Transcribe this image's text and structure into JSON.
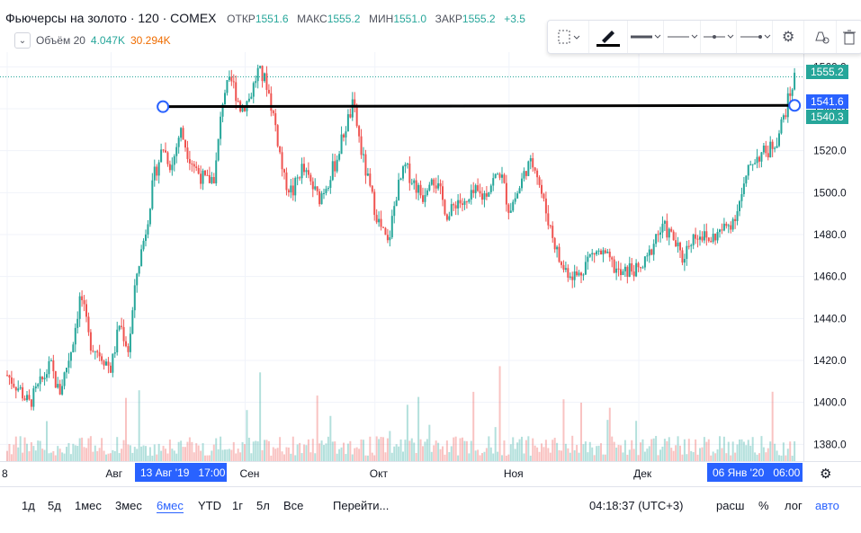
{
  "header": {
    "title": "Фьючерсы на золото · 120 · COMEX",
    "open_label": "ОТКР",
    "open_value": "1551.6",
    "high_label": "МАКС",
    "high_value": "1555.2",
    "low_label": "МИН",
    "low_value": "1551.0",
    "close_label": "ЗАКР",
    "close_value": "1555.2",
    "change_value": "+3.5"
  },
  "volume": {
    "label": "Объём 20",
    "value1": "4.047K",
    "value2": "30.294K",
    "toggle_icon": "chevron-down-icon"
  },
  "toolbar": {
    "icons": [
      "selection-icon",
      "pencil-icon",
      "line-width-icon",
      "line-style-icon",
      "line-end-icon",
      "line-arrow-icon",
      "gear-icon",
      "alert-icon",
      "trash-icon"
    ]
  },
  "colors": {
    "up": "#26a69a",
    "down": "#ef5350",
    "accent": "#2962ff",
    "price_tag": "#26a69a",
    "axis_highlight": "#2962ff",
    "trend": "#000000"
  },
  "price_labels": {
    "last": "1555.2",
    "trend_end": "1541.6",
    "prev": "1540.3"
  },
  "time_highlights": {
    "start_date": "13 Авг '19",
    "start_time": "17:00",
    "end_date": "06 Янв '20",
    "end_time": "06:00"
  },
  "bottom_bar": {
    "timeframes": [
      "1д",
      "5д",
      "1мес",
      "3мес",
      "6мес",
      "YTD",
      "1г",
      "5л",
      "Все"
    ],
    "active_timeframe": "6мес",
    "goto": "Перейти...",
    "clock": "04:18:37 (UTC+3)",
    "scale_options": [
      "расш",
      "%",
      "лог",
      "авто"
    ]
  },
  "chart_data": {
    "type": "candlestick",
    "y_ticks": [
      "1380.0",
      "1400.0",
      "1420.0",
      "1440.0",
      "1460.0",
      "1480.0",
      "1500.0",
      "1520.0",
      "1540.0",
      "1560.0"
    ],
    "ylim": [
      1372,
      1567
    ],
    "x_ticks": [
      "8",
      "Авг",
      "Сен",
      "Окт",
      "Ноя",
      "Дек"
    ],
    "x_range": [
      "2019-07-08",
      "2020-01-07"
    ],
    "grid": true,
    "trend_line": {
      "start": [
        "2019-08-13",
        1541.0
      ],
      "end": [
        "2020-01-06",
        1541.6
      ]
    },
    "series": [
      {
        "values": [
          [
            "2019-07-08",
            1413
          ],
          [
            "2019-07-11",
            1406
          ],
          [
            "2019-07-13",
            1399
          ],
          [
            "2019-07-16",
            1410
          ],
          [
            "2019-07-18",
            1418
          ],
          [
            "2019-07-20",
            1404
          ],
          [
            "2019-07-23",
            1427
          ],
          [
            "2019-07-25",
            1452
          ],
          [
            "2019-07-27",
            1429
          ],
          [
            "2019-07-30",
            1422
          ],
          [
            "2019-08-01",
            1416
          ],
          [
            "2019-08-03",
            1438
          ],
          [
            "2019-08-05",
            1425
          ],
          [
            "2019-08-07",
            1462
          ],
          [
            "2019-08-09",
            1482
          ],
          [
            "2019-08-11",
            1508
          ],
          [
            "2019-08-13",
            1522
          ],
          [
            "2019-08-15",
            1512
          ],
          [
            "2019-08-17",
            1530
          ],
          [
            "2019-08-19",
            1518
          ],
          [
            "2019-08-21",
            1510
          ],
          [
            "2019-08-23",
            1505
          ],
          [
            "2019-08-25",
            1508
          ],
          [
            "2019-08-27",
            1548
          ],
          [
            "2019-08-29",
            1553
          ],
          [
            "2019-08-31",
            1540
          ],
          [
            "2019-09-02",
            1545
          ],
          [
            "2019-09-04",
            1558
          ],
          [
            "2019-09-06",
            1552
          ],
          [
            "2019-09-08",
            1532
          ],
          [
            "2019-09-10",
            1506
          ],
          [
            "2019-09-12",
            1500
          ],
          [
            "2019-09-14",
            1512
          ],
          [
            "2019-09-16",
            1505
          ],
          [
            "2019-09-18",
            1497
          ],
          [
            "2019-09-20",
            1505
          ],
          [
            "2019-09-22",
            1515
          ],
          [
            "2019-09-24",
            1530
          ],
          [
            "2019-09-26",
            1542
          ],
          [
            "2019-09-28",
            1518
          ],
          [
            "2019-09-30",
            1500
          ],
          [
            "2019-10-02",
            1485
          ],
          [
            "2019-10-04",
            1475
          ],
          [
            "2019-10-06",
            1500
          ],
          [
            "2019-10-08",
            1512
          ],
          [
            "2019-10-10",
            1505
          ],
          [
            "2019-10-12",
            1498
          ],
          [
            "2019-10-14",
            1510
          ],
          [
            "2019-10-16",
            1500
          ],
          [
            "2019-10-18",
            1488
          ],
          [
            "2019-10-20",
            1497
          ],
          [
            "2019-10-22",
            1493
          ],
          [
            "2019-10-24",
            1500
          ],
          [
            "2019-10-26",
            1498
          ],
          [
            "2019-10-28",
            1505
          ],
          [
            "2019-10-30",
            1510
          ],
          [
            "2019-11-01",
            1492
          ],
          [
            "2019-11-03",
            1500
          ],
          [
            "2019-11-05",
            1512
          ],
          [
            "2019-11-07",
            1514
          ],
          [
            "2019-11-09",
            1495
          ],
          [
            "2019-11-11",
            1480
          ],
          [
            "2019-11-13",
            1465
          ],
          [
            "2019-11-15",
            1462
          ],
          [
            "2019-11-17",
            1460
          ],
          [
            "2019-11-19",
            1468
          ],
          [
            "2019-11-21",
            1472
          ],
          [
            "2019-11-23",
            1470
          ],
          [
            "2019-11-25",
            1465
          ],
          [
            "2019-11-27",
            1460
          ],
          [
            "2019-11-29",
            1464
          ],
          [
            "2019-12-01",
            1462
          ],
          [
            "2019-12-03",
            1468
          ],
          [
            "2019-12-05",
            1480
          ],
          [
            "2019-12-07",
            1483
          ],
          [
            "2019-12-09",
            1478
          ],
          [
            "2019-12-11",
            1468
          ],
          [
            "2019-12-13",
            1478
          ],
          [
            "2019-12-15",
            1481
          ],
          [
            "2019-12-17",
            1477
          ],
          [
            "2019-12-19",
            1480
          ],
          [
            "2019-12-21",
            1483
          ],
          [
            "2019-12-23",
            1488
          ],
          [
            "2019-12-25",
            1500
          ],
          [
            "2019-12-27",
            1515
          ],
          [
            "2019-12-29",
            1518
          ],
          [
            "2019-12-31",
            1520
          ],
          [
            "2020-01-02",
            1526
          ],
          [
            "2020-01-04",
            1540
          ],
          [
            "2020-01-06",
            1555
          ]
        ]
      }
    ]
  }
}
